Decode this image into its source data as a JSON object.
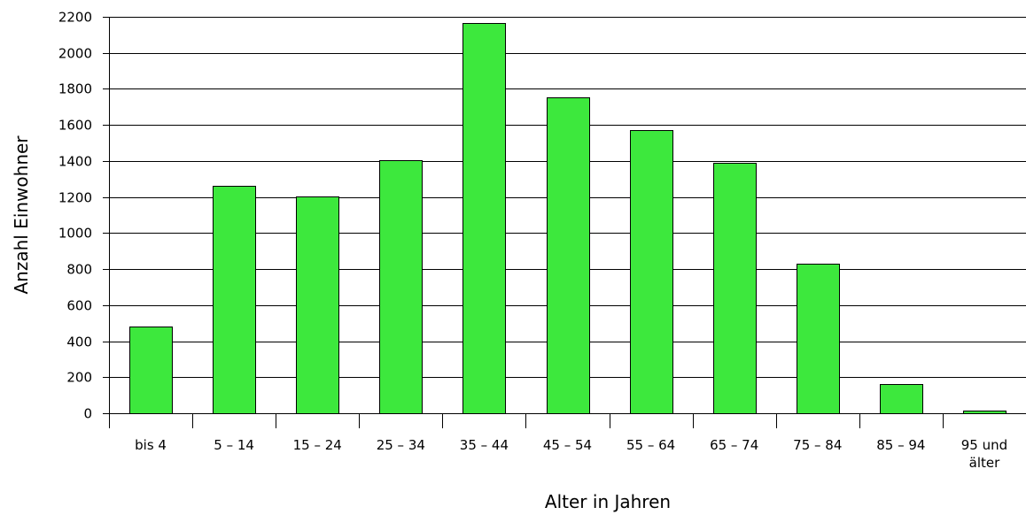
{
  "chart_data": {
    "type": "bar",
    "categories": [
      [
        "bis 4"
      ],
      [
        "5 – 14"
      ],
      [
        "15 – 24"
      ],
      [
        "25 – 34"
      ],
      [
        "35 – 44"
      ],
      [
        "45 – 54"
      ],
      [
        "55 – 64"
      ],
      [
        "65 – 74"
      ],
      [
        "75 – 84"
      ],
      [
        "85 – 94"
      ],
      [
        "95 und",
        "älter"
      ]
    ],
    "values": [
      480,
      1262,
      1202,
      1405,
      2165,
      1752,
      1570,
      1390,
      832,
      160,
      14
    ],
    "xlabel": "Alter in Jahren",
    "ylabel": "Anzahl Einwohner",
    "ylim": [
      0,
      2200
    ],
    "yticks": [
      0,
      200,
      400,
      600,
      800,
      1000,
      1200,
      1400,
      1600,
      1800,
      2000,
      2200
    ],
    "grid": true,
    "bar_color": "#3de83d"
  }
}
